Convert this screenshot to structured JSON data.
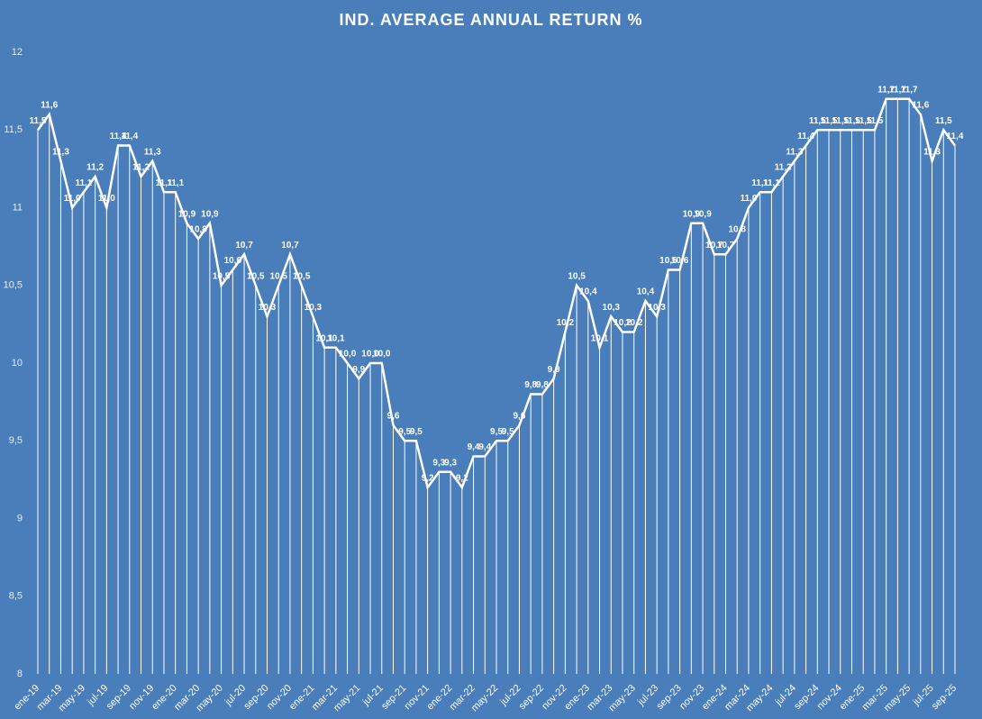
{
  "chart_data": {
    "type": "line",
    "title": "IND. AVERAGE ANNUAL RETURN %",
    "categories": [
      "ene-19",
      null,
      "mar-19",
      null,
      "may-19",
      null,
      "jul-19",
      null,
      "sep-19",
      null,
      "nov-19",
      null,
      "ene-20",
      null,
      "mar-20",
      null,
      "may-20",
      null,
      "jul-20",
      null,
      "sep-20",
      null,
      "nov-20",
      null,
      "ene-21",
      null,
      "mar-21",
      null,
      "may-21",
      null,
      "jul-21",
      null,
      "sep-21",
      null,
      "nov-21",
      null,
      "ene-22",
      null,
      "mar-22",
      null,
      "may-22",
      null,
      "jul-22",
      null,
      "sep-22",
      null,
      "nov-22",
      null,
      "ene-23",
      null,
      "mar-23",
      null,
      "may-23",
      null,
      "jul-23",
      null,
      "sep-23",
      null,
      "nov-23",
      null,
      "ene-24",
      null,
      "mar-24",
      null,
      "may-24",
      null,
      "jul-24",
      null,
      "sep-24",
      null,
      "nov-24",
      null,
      "ene-25",
      null,
      "mar-25",
      null,
      "may-25",
      null,
      "jul-25",
      null,
      "sep-25"
    ],
    "values": [
      11.5,
      11.6,
      11.3,
      11.0,
      11.1,
      11.2,
      11.0,
      11.4,
      11.4,
      11.2,
      11.3,
      11.1,
      11.1,
      10.9,
      10.8,
      10.9,
      10.5,
      10.6,
      10.7,
      10.5,
      10.3,
      10.5,
      10.7,
      10.5,
      10.3,
      10.1,
      10.1,
      10.0,
      9.9,
      10.0,
      10.0,
      9.6,
      9.5,
      9.5,
      9.2,
      9.3,
      9.3,
      9.2,
      9.4,
      9.4,
      9.5,
      9.5,
      9.6,
      9.8,
      9.8,
      9.9,
      10.2,
      10.5,
      10.4,
      10.1,
      10.3,
      10.2,
      10.2,
      10.4,
      10.3,
      10.6,
      10.6,
      10.9,
      10.9,
      10.7,
      10.7,
      10.8,
      11.0,
      11.1,
      11.1,
      11.2,
      11.3,
      11.4,
      11.5,
      11.5,
      11.5,
      11.5,
      11.5,
      11.5,
      11.7,
      11.7,
      11.7,
      11.6,
      11.3,
      11.5,
      11.4
    ],
    "value_labels": [
      "11,5",
      "11,6",
      "11,3",
      "11,0",
      "11,1",
      "11,2",
      "11,0",
      "11,4",
      "11,4",
      "11,2",
      "11,3",
      "11,1",
      "11,1",
      "10,9",
      "10,8",
      "10,9",
      "10,5",
      "10,6",
      "10,7",
      "10,5",
      "10,3",
      "10,5",
      "10,7",
      "10,5",
      "10,3",
      "10,1",
      "10,1",
      "10,0",
      "9,9",
      "10,0",
      "10,0",
      "9,6",
      "9,5",
      "9,5",
      "9,2",
      "9,3",
      "9,3",
      "9,2",
      "9,4",
      "9,4",
      "9,5",
      "9,5",
      "9,6",
      "9,8",
      "9,8",
      "9,9",
      "10,2",
      "10,5",
      "10,4",
      "10,1",
      "10,3",
      "10,2",
      "10,2",
      "10,4",
      "10,3",
      "10,6",
      "10,6",
      "10,9",
      "10,9",
      "10,7",
      "10,7",
      "10,8",
      "11,0",
      "11,1",
      "11,1",
      "11,2",
      "11,3",
      "11,4",
      "11,5",
      "11,5",
      "11,5",
      "11,5",
      "11,5",
      "11,5",
      "11,7",
      "11,7",
      "11,7",
      "11,6",
      "11,3",
      "11,5",
      "11,4"
    ],
    "color": "#ffffff",
    "drop_lines": true,
    "ylim": [
      8,
      12
    ],
    "yticks": [
      8,
      {
        "value": 8.5,
        "label": "8,5"
      },
      9,
      {
        "value": 9.5,
        "label": "9,5"
      },
      10,
      {
        "value": 10.5,
        "label": "10,5"
      },
      11,
      {
        "value": 11.5,
        "label": "11,5"
      },
      12
    ]
  }
}
